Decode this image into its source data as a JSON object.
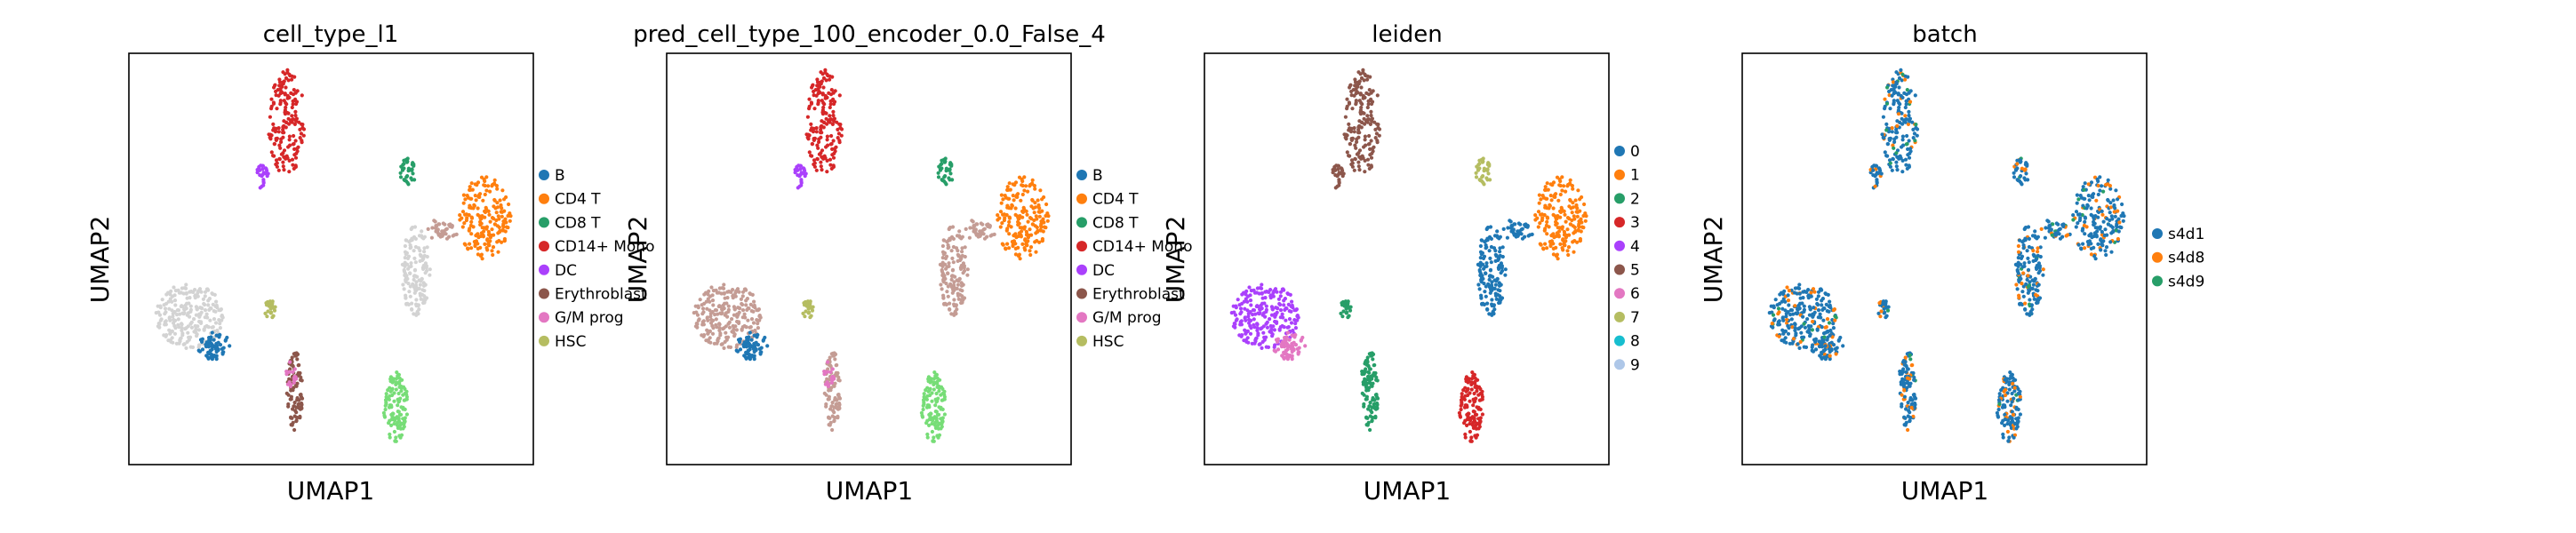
{
  "chart_data": [
    {
      "type": "scatter",
      "title": "cell_type_l1",
      "xlabel": "UMAP1",
      "ylabel": "UMAP2",
      "legend_placement": "right",
      "legend": [
        {
          "label": "B",
          "color": "#1f77b4"
        },
        {
          "label": "CD4 T",
          "color": "#ff7f0e"
        },
        {
          "label": "CD8 T",
          "color": "#279e68"
        },
        {
          "label": "CD14+ Mono",
          "color": "#d62728"
        },
        {
          "label": "DC",
          "color": "#aa40fc"
        },
        {
          "label": "Erythroblast",
          "color": "#8c564b"
        },
        {
          "label": "G/M prog",
          "color": "#e377c2"
        },
        {
          "label": "HSC",
          "color": "#b5bd61"
        }
      ],
      "clusters": [
        {
          "name": "top-arm",
          "color": "#d62728"
        },
        {
          "name": "top-small",
          "color": "#aa40fc"
        },
        {
          "name": "green-blob",
          "color": "#279e68"
        },
        {
          "name": "right-blob",
          "color": "#ff7f0e"
        },
        {
          "name": "center-stalk",
          "color": "#d3d3d3"
        },
        {
          "name": "center-branch",
          "color": "#c49c94"
        },
        {
          "name": "left-big",
          "color": "#d3d3d3"
        },
        {
          "name": "blue-cluster",
          "color": "#1f77b4"
        },
        {
          "name": "hsc-small",
          "color": "#b5bd61"
        },
        {
          "name": "bottom-stalk",
          "color": "#8c564b"
        },
        {
          "name": "bottom-small",
          "color": "#e377c2"
        },
        {
          "name": "bottom-right",
          "color": "#77dd77"
        }
      ]
    },
    {
      "type": "scatter",
      "title": "pred_cell_type_100_encoder_0.0_False_4",
      "xlabel": "UMAP1",
      "ylabel": "UMAP2",
      "legend_placement": "right",
      "legend": [
        {
          "label": "B",
          "color": "#1f77b4"
        },
        {
          "label": "CD4 T",
          "color": "#ff7f0e"
        },
        {
          "label": "CD8 T",
          "color": "#279e68"
        },
        {
          "label": "CD14+ Mono",
          "color": "#d62728"
        },
        {
          "label": "DC",
          "color": "#aa40fc"
        },
        {
          "label": "Erythroblast",
          "color": "#8c564b"
        },
        {
          "label": "G/M prog",
          "color": "#e377c2"
        },
        {
          "label": "HSC",
          "color": "#b5bd61"
        }
      ],
      "clusters": [
        {
          "name": "top-arm",
          "color": "#d62728"
        },
        {
          "name": "top-small",
          "color": "#aa40fc"
        },
        {
          "name": "green-blob",
          "color": "#279e68"
        },
        {
          "name": "right-blob",
          "color": "#ff7f0e"
        },
        {
          "name": "center-stalk",
          "color": "#c49c94"
        },
        {
          "name": "center-branch",
          "color": "#c49c94"
        },
        {
          "name": "left-big",
          "color": "#c49c94"
        },
        {
          "name": "blue-cluster",
          "color": "#1f77b4"
        },
        {
          "name": "hsc-small",
          "color": "#b5bd61"
        },
        {
          "name": "bottom-stalk",
          "color": "#c49c94"
        },
        {
          "name": "bottom-small",
          "color": "#e377c2"
        },
        {
          "name": "bottom-right",
          "color": "#77dd77"
        }
      ]
    },
    {
      "type": "scatter",
      "title": "leiden",
      "xlabel": "UMAP1",
      "ylabel": "UMAP2",
      "legend_placement": "right",
      "legend": [
        {
          "label": "0",
          "color": "#1f77b4"
        },
        {
          "label": "1",
          "color": "#ff7f0e"
        },
        {
          "label": "2",
          "color": "#279e68"
        },
        {
          "label": "3",
          "color": "#d62728"
        },
        {
          "label": "4",
          "color": "#aa40fc"
        },
        {
          "label": "5",
          "color": "#8c564b"
        },
        {
          "label": "6",
          "color": "#e377c2"
        },
        {
          "label": "7",
          "color": "#b5bd61"
        },
        {
          "label": "8",
          "color": "#17becf"
        },
        {
          "label": "9",
          "color": "#aec7e8"
        }
      ],
      "clusters": [
        {
          "name": "top-arm",
          "color": "#8c564b"
        },
        {
          "name": "top-small",
          "color": "#8c564b"
        },
        {
          "name": "green-blob",
          "color": "#b5bd61"
        },
        {
          "name": "right-blob",
          "color": "#ff7f0e"
        },
        {
          "name": "center-stalk",
          "color": "#1f77b4"
        },
        {
          "name": "center-branch",
          "color": "#1f77b4"
        },
        {
          "name": "left-big",
          "color": "#aa40fc"
        },
        {
          "name": "blue-cluster",
          "color": "#e377c2"
        },
        {
          "name": "hsc-small",
          "color": "#279e68"
        },
        {
          "name": "bottom-stalk",
          "color": "#279e68"
        },
        {
          "name": "bottom-small",
          "color": "#279e68"
        },
        {
          "name": "bottom-right",
          "color": "#d62728"
        }
      ]
    },
    {
      "type": "scatter",
      "title": "batch",
      "xlabel": "UMAP1",
      "ylabel": "UMAP2",
      "legend_placement": "right",
      "legend": [
        {
          "label": "s4d1",
          "color": "#1f77b4"
        },
        {
          "label": "s4d8",
          "color": "#ff7f0e"
        },
        {
          "label": "s4d9",
          "color": "#279e68"
        }
      ],
      "clusters": [
        {
          "name": "top-arm",
          "color": "#1f77b4"
        },
        {
          "name": "top-small",
          "color": "#1f77b4"
        },
        {
          "name": "green-blob",
          "color": "#1f77b4"
        },
        {
          "name": "right-blob",
          "color": "#1f77b4"
        },
        {
          "name": "center-stalk",
          "color": "#1f77b4"
        },
        {
          "name": "center-branch",
          "color": "#1f77b4"
        },
        {
          "name": "left-big",
          "color": "#1f77b4"
        },
        {
          "name": "blue-cluster",
          "color": "#1f77b4"
        },
        {
          "name": "hsc-small",
          "color": "#1f77b4"
        },
        {
          "name": "bottom-stalk",
          "color": "#1f77b4"
        },
        {
          "name": "bottom-small",
          "color": "#1f77b4"
        },
        {
          "name": "bottom-right",
          "color": "#1f77b4"
        }
      ],
      "mixed_colors": [
        "#ff7f0e",
        "#279e68"
      ]
    }
  ]
}
